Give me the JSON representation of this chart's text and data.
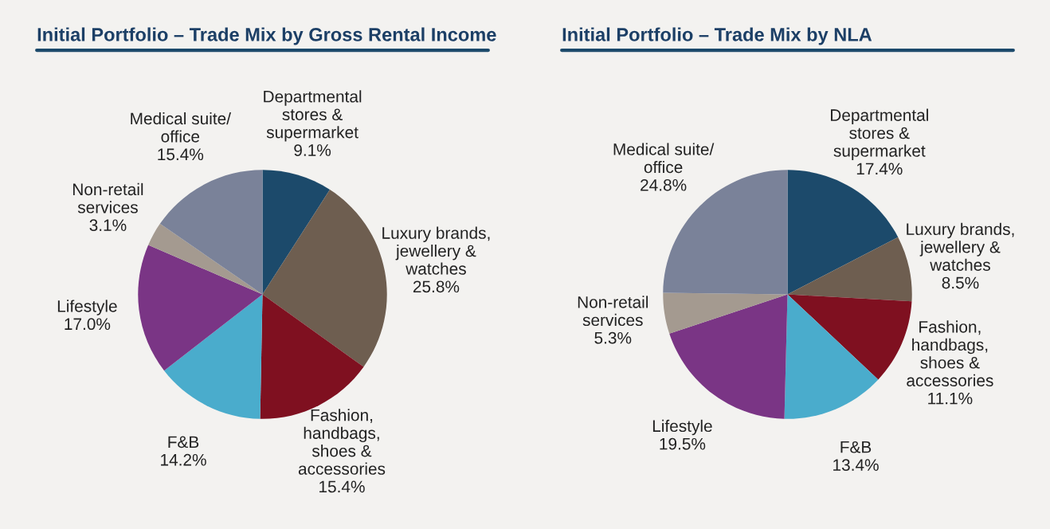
{
  "chart_data": [
    {
      "type": "pie",
      "title": "Initial Portfolio – Trade Mix by Gross Rental Income",
      "categories": [
        "Departmental\nstores &\nsupermarket",
        "Luxury brands,\njewellery &\nwatches",
        "Fashion,\nhandbags,\nshoes &\naccessories",
        "F&B",
        "Lifestyle",
        "Non-retail\nservices",
        "Medical suite/\noffice"
      ],
      "values": [
        9.1,
        25.8,
        15.4,
        14.2,
        17.0,
        3.1,
        15.4
      ],
      "value_labels": [
        "9.1%",
        "25.8%",
        "15.4%",
        "14.2%",
        "17.0%",
        "3.1%",
        "15.4%"
      ],
      "colors": [
        "#1c4a6b",
        "#6e5e50",
        "#7f1020",
        "#4aaccc",
        "#7a3585",
        "#a49a90",
        "#7a8299"
      ]
    },
    {
      "type": "pie",
      "title": "Initial Portfolio – Trade Mix by NLA",
      "categories": [
        "Departmental\nstores &\nsupermarket",
        "Luxury brands,\njewellery &\nwatches",
        "Fashion,\nhandbags,\nshoes &\naccessories",
        "F&B",
        "Lifestyle",
        "Non-retail\nservices",
        "Medical suite/\noffice"
      ],
      "values": [
        17.4,
        8.5,
        11.1,
        13.4,
        19.5,
        5.3,
        24.8
      ],
      "value_labels": [
        "17.4%",
        "8.5%",
        "11.1%",
        "13.4%",
        "19.5%",
        "5.3%",
        "24.8%"
      ],
      "colors": [
        "#1c4a6b",
        "#6e5e50",
        "#7f1020",
        "#4aaccc",
        "#7a3585",
        "#a49a90",
        "#7a8299"
      ]
    }
  ]
}
